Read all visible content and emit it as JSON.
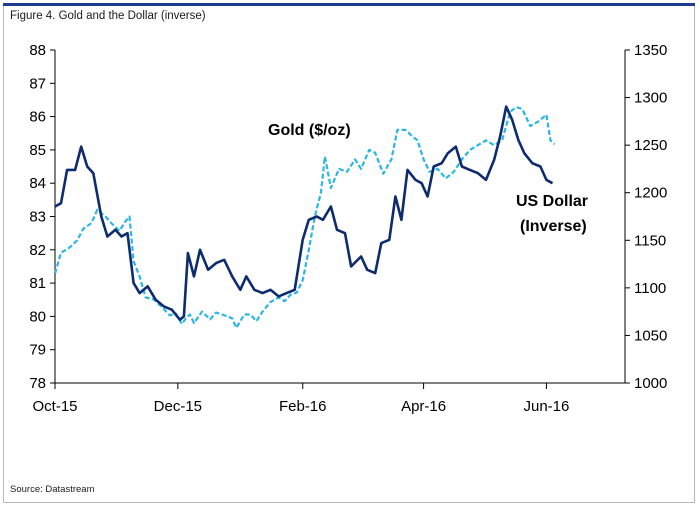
{
  "figure_title": "Figure 4. Gold and the Dollar (inverse)",
  "source": "Source: Datastream",
  "colors": {
    "gold": "#2bb6e3",
    "usd": "#0d2b6e",
    "axis": "#000000",
    "topbar": "#1f3a93"
  },
  "chart_data": {
    "type": "line",
    "title": "Figure 4. Gold and the Dollar (inverse)",
    "x_range": [
      "2015-10-01",
      "2016-07-10"
    ],
    "x_ticks": [
      {
        "label": "Oct-15",
        "date": "2015-10-01"
      },
      {
        "label": "Dec-15",
        "date": "2015-12-01"
      },
      {
        "label": "Feb-16",
        "date": "2016-02-01"
      },
      {
        "label": "Apr-16",
        "date": "2016-04-01"
      },
      {
        "label": "Jun-16",
        "date": "2016-06-01"
      }
    ],
    "y_left": {
      "min": 78,
      "max": 88,
      "ticks": [
        "78",
        "79",
        "80",
        "81",
        "82",
        "83",
        "84",
        "85",
        "86",
        "87",
        "88"
      ]
    },
    "y_right": {
      "min": 1000,
      "max": 1350,
      "ticks": [
        "1000",
        "1050",
        "1100",
        "1150",
        "1200",
        "1250",
        "1300",
        "1350"
      ]
    },
    "annotations": [
      {
        "text": "Gold ($/oz)"
      },
      {
        "text": "US Dollar"
      },
      {
        "text": "(Inverse)"
      }
    ],
    "grid": false,
    "series": [
      {
        "name": "Gold ($/oz)",
        "axis": "right",
        "style": "dashed",
        "points": [
          [
            "2015-10-01",
            1115
          ],
          [
            "2015-10-04",
            1137
          ],
          [
            "2015-10-08",
            1142
          ],
          [
            "2015-10-12",
            1150
          ],
          [
            "2015-10-15",
            1162
          ],
          [
            "2015-10-19",
            1168
          ],
          [
            "2015-10-22",
            1182
          ],
          [
            "2015-10-26",
            1175
          ],
          [
            "2015-10-29",
            1168
          ],
          [
            "2015-11-02",
            1160
          ],
          [
            "2015-11-05",
            1170
          ],
          [
            "2015-11-07",
            1175
          ],
          [
            "2015-11-09",
            1128
          ],
          [
            "2015-11-12",
            1112
          ],
          [
            "2015-11-15",
            1090
          ],
          [
            "2015-11-19",
            1088
          ],
          [
            "2015-11-23",
            1080
          ],
          [
            "2015-11-27",
            1071
          ],
          [
            "2015-11-30",
            1073
          ],
          [
            "2015-12-03",
            1062
          ],
          [
            "2015-12-05",
            1068
          ],
          [
            "2015-12-07",
            1072
          ],
          [
            "2015-12-09",
            1063
          ],
          [
            "2015-12-13",
            1075
          ],
          [
            "2015-12-17",
            1067
          ],
          [
            "2015-12-20",
            1074
          ],
          [
            "2015-12-23",
            1072
          ],
          [
            "2015-12-28",
            1068
          ],
          [
            "2015-12-30",
            1058
          ],
          [
            "2016-01-03",
            1072
          ],
          [
            "2016-01-06",
            1072
          ],
          [
            "2016-01-09",
            1065
          ],
          [
            "2016-01-12",
            1075
          ],
          [
            "2016-01-16",
            1085
          ],
          [
            "2016-01-20",
            1090
          ],
          [
            "2016-01-23",
            1086
          ],
          [
            "2016-01-26",
            1093
          ],
          [
            "2016-01-29",
            1095
          ],
          [
            "2016-02-01",
            1108
          ],
          [
            "2016-02-04",
            1140
          ],
          [
            "2016-02-07",
            1175
          ],
          [
            "2016-02-10",
            1200
          ],
          [
            "2016-02-12",
            1238
          ],
          [
            "2016-02-15",
            1205
          ],
          [
            "2016-02-19",
            1225
          ],
          [
            "2016-02-23",
            1222
          ],
          [
            "2016-02-27",
            1235
          ],
          [
            "2016-03-01",
            1225
          ],
          [
            "2016-03-05",
            1245
          ],
          [
            "2016-03-08",
            1242
          ],
          [
            "2016-03-12",
            1220
          ],
          [
            "2016-03-16",
            1235
          ],
          [
            "2016-03-19",
            1266
          ],
          [
            "2016-03-23",
            1266
          ],
          [
            "2016-03-26",
            1260
          ],
          [
            "2016-03-29",
            1255
          ],
          [
            "2016-04-01",
            1235
          ],
          [
            "2016-04-04",
            1222
          ],
          [
            "2016-04-08",
            1225
          ],
          [
            "2016-04-12",
            1215
          ],
          [
            "2016-04-16",
            1222
          ],
          [
            "2016-04-20",
            1235
          ],
          [
            "2016-04-24",
            1245
          ],
          [
            "2016-04-28",
            1250
          ],
          [
            "2016-05-02",
            1255
          ],
          [
            "2016-05-06",
            1250
          ],
          [
            "2016-05-10",
            1255
          ],
          [
            "2016-05-14",
            1285
          ],
          [
            "2016-05-17",
            1290
          ],
          [
            "2016-05-20",
            1288
          ],
          [
            "2016-05-24",
            1270
          ],
          [
            "2016-05-28",
            1275
          ],
          [
            "2016-06-01",
            1282
          ],
          [
            "2016-06-03",
            1255
          ],
          [
            "2016-06-05",
            1251
          ]
        ]
      },
      {
        "name": "US Dollar (Inverse)",
        "axis": "left",
        "style": "solid",
        "points": [
          [
            "2015-10-01",
            83.3
          ],
          [
            "2015-10-04",
            83.4
          ],
          [
            "2015-10-07",
            84.4
          ],
          [
            "2015-10-11",
            84.4
          ],
          [
            "2015-10-14",
            85.1
          ],
          [
            "2015-10-17",
            84.5
          ],
          [
            "2015-10-20",
            84.3
          ],
          [
            "2015-10-24",
            83.0
          ],
          [
            "2015-10-27",
            82.4
          ],
          [
            "2015-10-31",
            82.6
          ],
          [
            "2015-11-03",
            82.4
          ],
          [
            "2015-11-06",
            82.5
          ],
          [
            "2015-11-09",
            81.0
          ],
          [
            "2015-11-12",
            80.7
          ],
          [
            "2015-11-16",
            80.9
          ],
          [
            "2015-11-20",
            80.5
          ],
          [
            "2015-11-24",
            80.3
          ],
          [
            "2015-11-28",
            80.2
          ],
          [
            "2015-12-02",
            79.9
          ],
          [
            "2015-12-04",
            80.0
          ],
          [
            "2015-12-06",
            81.9
          ],
          [
            "2015-12-09",
            81.2
          ],
          [
            "2015-12-12",
            82.0
          ],
          [
            "2015-12-16",
            81.4
          ],
          [
            "2015-12-20",
            81.6
          ],
          [
            "2015-12-24",
            81.7
          ],
          [
            "2015-12-28",
            81.2
          ],
          [
            "2016-01-01",
            80.8
          ],
          [
            "2016-01-04",
            81.2
          ],
          [
            "2016-01-08",
            80.8
          ],
          [
            "2016-01-12",
            80.7
          ],
          [
            "2016-01-16",
            80.8
          ],
          [
            "2016-01-20",
            80.6
          ],
          [
            "2016-01-24",
            80.7
          ],
          [
            "2016-01-28",
            80.8
          ],
          [
            "2016-02-01",
            82.3
          ],
          [
            "2016-02-04",
            82.9
          ],
          [
            "2016-02-08",
            83.0
          ],
          [
            "2016-02-11",
            82.9
          ],
          [
            "2016-02-15",
            83.3
          ],
          [
            "2016-02-18",
            82.6
          ],
          [
            "2016-02-22",
            82.5
          ],
          [
            "2016-02-25",
            81.5
          ],
          [
            "2016-03-01",
            81.8
          ],
          [
            "2016-03-04",
            81.4
          ],
          [
            "2016-03-08",
            81.3
          ],
          [
            "2016-03-11",
            82.2
          ],
          [
            "2016-03-15",
            82.3
          ],
          [
            "2016-03-18",
            83.6
          ],
          [
            "2016-03-21",
            82.9
          ],
          [
            "2016-03-24",
            84.4
          ],
          [
            "2016-03-28",
            84.1
          ],
          [
            "2016-03-31",
            84.0
          ],
          [
            "2016-04-03",
            83.6
          ],
          [
            "2016-04-06",
            84.5
          ],
          [
            "2016-04-10",
            84.6
          ],
          [
            "2016-04-13",
            84.9
          ],
          [
            "2016-04-17",
            85.1
          ],
          [
            "2016-04-20",
            84.5
          ],
          [
            "2016-04-24",
            84.4
          ],
          [
            "2016-04-28",
            84.3
          ],
          [
            "2016-05-02",
            84.1
          ],
          [
            "2016-05-06",
            84.7
          ],
          [
            "2016-05-09",
            85.4
          ],
          [
            "2016-05-12",
            86.3
          ],
          [
            "2016-05-15",
            85.9
          ],
          [
            "2016-05-18",
            85.3
          ],
          [
            "2016-05-21",
            84.9
          ],
          [
            "2016-05-25",
            84.6
          ],
          [
            "2016-05-29",
            84.5
          ],
          [
            "2016-06-01",
            84.1
          ],
          [
            "2016-06-04",
            84.0
          ]
        ]
      }
    ]
  }
}
